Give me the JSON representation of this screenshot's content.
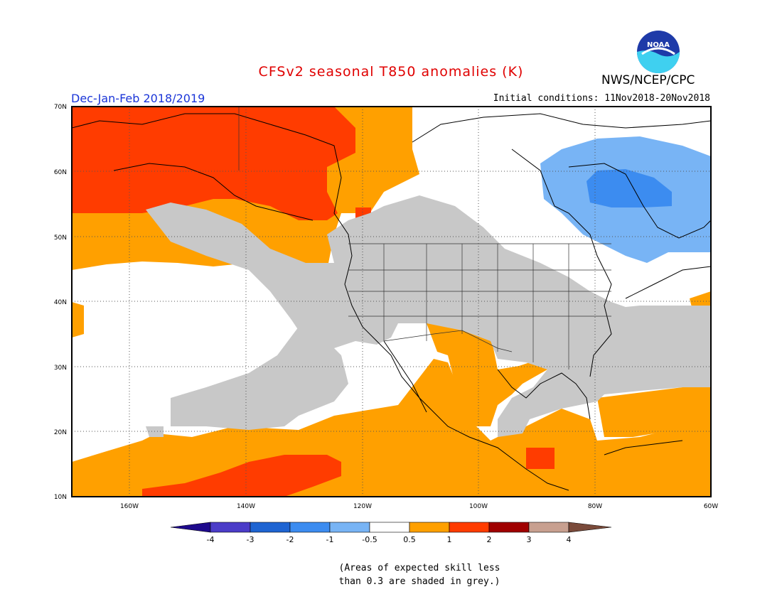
{
  "title": "CFSv2 seasonal T850 anomalies (K)",
  "agency": "NWS/NCEP/CPC",
  "logo_text": "NOAA",
  "season": "Dec-Jan-Feb 2018/2019",
  "initial_conditions": "Initial conditions: 11Nov2018-20Nov2018",
  "map": {
    "lat_labels": [
      "70N",
      "60N",
      "50N",
      "40N",
      "30N",
      "20N",
      "10N"
    ],
    "lon_labels": [
      "160W",
      "140W",
      "120W",
      "100W",
      "80W",
      "60W"
    ]
  },
  "colorbar": {
    "labels": [
      "-4",
      "-3",
      "-2",
      "-1",
      "-0.5",
      "0.5",
      "1",
      "2",
      "3",
      "4"
    ],
    "colors": [
      "#1e0a8c",
      "#4b3cc8",
      "#1e64d2",
      "#3c8cf0",
      "#78b4f5",
      "#ffffff",
      "#ffa000",
      "#ff3c00",
      "#a00000",
      "#c8a090",
      "#7a4a3a"
    ]
  },
  "colors": {
    "skill_grey": "#c8c8c8",
    "title_red": "#e00000",
    "season_blue": "#1a35d8"
  },
  "note_lines": [
    "(Areas of expected skill less",
    "than 0.3 are shaded in grey.)"
  ]
}
